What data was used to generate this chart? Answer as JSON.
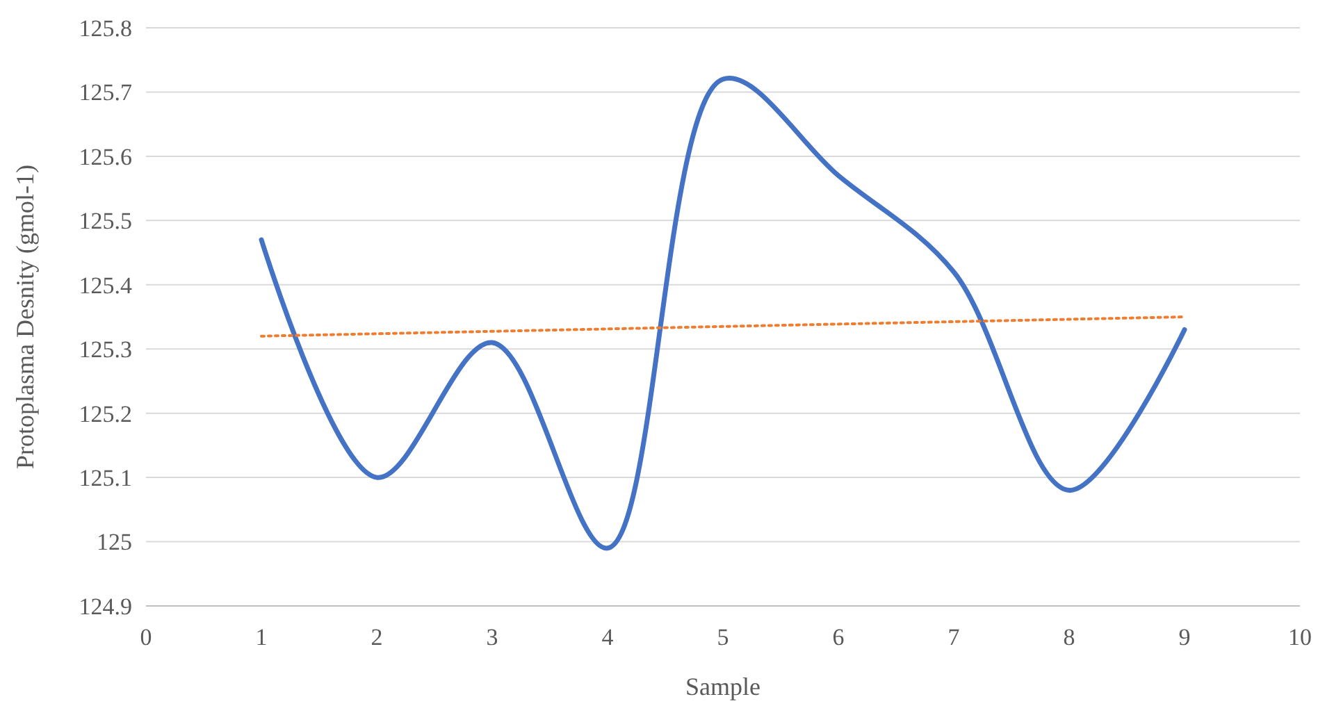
{
  "chart_data": {
    "type": "line",
    "xlabel": "Sample",
    "ylabel": "Protoplasma Desnity (gmol-1)",
    "xlim": [
      0,
      10
    ],
    "xticks": [
      0,
      1,
      2,
      3,
      4,
      5,
      6,
      7,
      8,
      9,
      10
    ],
    "ylim": [
      124.9,
      125.8
    ],
    "yticks": [
      124.9,
      125,
      125.1,
      125.2,
      125.3,
      125.4,
      125.5,
      125.6,
      125.7,
      125.8
    ],
    "grid": "y",
    "marker": "none",
    "x": [
      1,
      2,
      3,
      4,
      5,
      6,
      7,
      8,
      9
    ],
    "series": [
      {
        "color": "#4472c4",
        "values": [
          125.47,
          125.1,
          125.31,
          124.99,
          125.72,
          125.57,
          125.42,
          125.08,
          125.33
        ],
        "line_style": "solid"
      },
      {
        "color": "#ed7d31",
        "x": [
          1,
          9
        ],
        "values": [
          125.32,
          125.35
        ],
        "line_style": "dotted"
      }
    ]
  }
}
